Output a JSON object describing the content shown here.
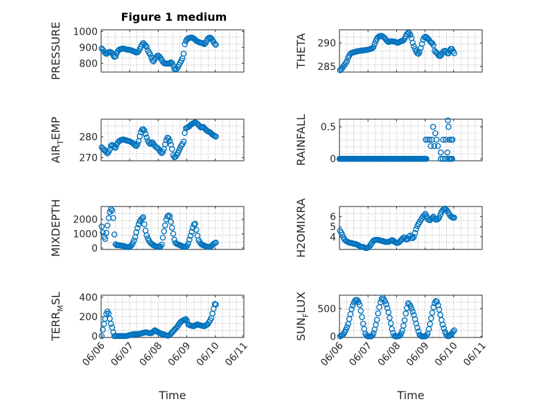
{
  "figure_title": "Figure 1 medium",
  "colors": {
    "marker": "#0072bd",
    "axis": "#262626",
    "grid": "#b0b0b0"
  },
  "chart_data": [
    {
      "type": "scatter",
      "ylabel": "PRESSURE",
      "ylabel_sub": "",
      "ylabel_tail": "",
      "yticks": [
        "800",
        "900",
        "1000"
      ],
      "ylim": [
        745,
        1010
      ],
      "xlim": [
        0,
        5
      ],
      "xticks": [],
      "xlabel": "",
      "grid": true,
      "marker": "open-circle",
      "y_at_day_steps": [
        893,
        880,
        865,
        858,
        870,
        872,
        868,
        850,
        835,
        862,
        882,
        888,
        891,
        893,
        890,
        886,
        885,
        884,
        880,
        876,
        872,
        866,
        872,
        892,
        913,
        928,
        915,
        905,
        872,
        860,
        830,
        808,
        828,
        846,
        848,
        840,
        822,
        805,
        798,
        800,
        796,
        802,
        808,
        785,
        757,
        765,
        780,
        800,
        820,
        840,
        925,
        948,
        956,
        960,
        962,
        958,
        950,
        940,
        935,
        930,
        928,
        925,
        918,
        938,
        958,
        962,
        955,
        940,
        922,
        913
      ]
    },
    {
      "type": "scatter",
      "ylabel": "THETA",
      "ylabel_sub": "",
      "ylabel_tail": "",
      "yticks": [
        "285",
        "290"
      ],
      "ylim": [
        283.8,
        292.8
      ],
      "xlim": [
        0,
        5
      ],
      "xticks": [],
      "xlabel": "",
      "grid": true,
      "marker": "open-circle",
      "y_at_day_steps": [
        284.2,
        284.5,
        285.0,
        285.5,
        286.0,
        287.0,
        287.6,
        287.9,
        288.0,
        288.1,
        288.2,
        288.3,
        288.3,
        288.4,
        288.4,
        288.5,
        288.5,
        288.6,
        288.7,
        288.8,
        289.0,
        290.0,
        290.8,
        291.3,
        291.5,
        291.5,
        291.3,
        291.0,
        290.5,
        290.2,
        290.3,
        290.4,
        290.3,
        290.3,
        290.1,
        290.0,
        290.3,
        290.4,
        290.5,
        291.0,
        291.8,
        292.2,
        292.0,
        291.0,
        289.6,
        288.8,
        288.0,
        287.6,
        288.2,
        289.5,
        290.8,
        291.4,
        291.2,
        290.9,
        290.4,
        290.0,
        289.8,
        288.1,
        288.0,
        287.5,
        287.1,
        287.5,
        288.2,
        288.4,
        288.0,
        287.6,
        288.5,
        288.9,
        288.2,
        287.6
      ]
    },
    {
      "type": "scatter",
      "ylabel": "AIR",
      "ylabel_sub": "T",
      "ylabel_tail": "EMP",
      "yticks": [
        "270",
        "280"
      ],
      "ylim": [
        268.5,
        288.5
      ],
      "xlim": [
        0,
        5
      ],
      "xticks": [],
      "xlabel": "",
      "grid": true,
      "marker": "open-circle",
      "y_at_day_steps": [
        275.0,
        274.0,
        273.0,
        272.0,
        273.5,
        276.5,
        275.5,
        274.5,
        277.0,
        278.0,
        278.5,
        278.8,
        278.5,
        278.2,
        278.0,
        277.5,
        277.0,
        276.0,
        275.5,
        278.0,
        282.0,
        284.0,
        283.0,
        280.0,
        277.5,
        276.5,
        277.5,
        276.0,
        275.0,
        274.5,
        273.0,
        272.0,
        274.0,
        278.0,
        280.0,
        278.0,
        275.0,
        270.0,
        270.5,
        272.0,
        274.0,
        276.0,
        277.0,
        284.0,
        284.5,
        285.0,
        286.0,
        286.5,
        287.0,
        286.5,
        285.5,
        284.5,
        285.0,
        284.0,
        283.0,
        282.5,
        282.0,
        281.0,
        280.5,
        280.0
      ]
    },
    {
      "type": "scatter",
      "ylabel": "RAINFALL",
      "ylabel_sub": "",
      "ylabel_tail": "",
      "yticks": [
        "0",
        "0.5"
      ],
      "ylim": [
        -0.03,
        0.62
      ],
      "xlim": [
        0,
        5
      ],
      "xticks": [],
      "xlabel": "",
      "grid": true,
      "marker": "open-circle",
      "points": [
        [
          3.02,
          0.3
        ],
        [
          3.08,
          0.3
        ],
        [
          3.15,
          0.3
        ],
        [
          3.2,
          0.2
        ],
        [
          3.24,
          0.3
        ],
        [
          3.28,
          0.5
        ],
        [
          3.32,
          0.2
        ],
        [
          3.36,
          0.4
        ],
        [
          3.4,
          0.3
        ],
        [
          3.45,
          0.2
        ],
        [
          3.55,
          0.1
        ],
        [
          3.63,
          0.3
        ],
        [
          3.72,
          0.3
        ],
        [
          3.78,
          0.1
        ],
        [
          3.8,
          0.6
        ],
        [
          3.82,
          0.5
        ],
        [
          3.85,
          0.3
        ],
        [
          3.92,
          0.3
        ],
        [
          3.96,
          0.3
        ],
        [
          3.86,
          0.0
        ],
        [
          3.9,
          0.0
        ],
        [
          3.94,
          0.0
        ]
      ],
      "zero_run_end_day": 3.05,
      "zero_extra_days": [
        3.55,
        3.62,
        3.7,
        3.78,
        3.84,
        3.9,
        3.95
      ]
    },
    {
      "type": "scatter",
      "ylabel": "MIXDEPTH",
      "ylabel_sub": "",
      "ylabel_tail": "",
      "yticks": [
        "0",
        "1000",
        "2000"
      ],
      "ylim": [
        -100,
        2900
      ],
      "xlim": [
        0,
        5
      ],
      "xticks": [],
      "xlabel": "",
      "grid": true,
      "marker": "open-circle",
      "y_at_day_steps": [
        1500,
        900,
        600,
        1200,
        2000,
        2600,
        2800,
        2050,
        300,
        200,
        200,
        180,
        160,
        160,
        100,
        80,
        60,
        100,
        200,
        400,
        700,
        1200,
        1600,
        1900,
        2050,
        2150,
        1400,
        900,
        600,
        400,
        300,
        200,
        150,
        100,
        80,
        60,
        200,
        900,
        1500,
        2100,
        2300,
        2200,
        1600,
        1000,
        400,
        300,
        250,
        200,
        150,
        100,
        60,
        100,
        300,
        700,
        1100,
        1500,
        1800,
        1200,
        600,
        400,
        250,
        200,
        150,
        100,
        80,
        60,
        150,
        250,
        350,
        400
      ]
    },
    {
      "type": "scatter",
      "ylabel": "H2OMIXRA",
      "ylabel_sub": "",
      "ylabel_tail": "",
      "yticks": [
        "4",
        "5",
        "6"
      ],
      "ylim": [
        2.75,
        7.0
      ],
      "xlim": [
        0,
        5
      ],
      "xticks": [],
      "xlabel": "",
      "grid": true,
      "marker": "open-circle",
      "y_at_day_steps": [
        4.6,
        4.3,
        3.8,
        3.6,
        3.5,
        3.4,
        3.4,
        3.3,
        3.3,
        3.2,
        3.1,
        3.0,
        3.0,
        2.9,
        2.9,
        3.0,
        3.3,
        3.6,
        3.7,
        3.7,
        3.7,
        3.6,
        3.6,
        3.5,
        3.5,
        3.5,
        3.6,
        3.7,
        3.5,
        3.4,
        3.4,
        3.6,
        3.8,
        4.0,
        3.7,
        3.8,
        4.2,
        3.8,
        4.0,
        4.7,
        5.2,
        5.5,
        5.8,
        6.1,
        6.3,
        5.8,
        5.6,
        5.8,
        6.0,
        5.7,
        5.7,
        5.9,
        6.4,
        6.7,
        6.8,
        6.6,
        6.3,
        6.0,
        5.9,
        5.9
      ]
    },
    {
      "type": "scatter",
      "ylabel": "TERR",
      "ylabel_sub": "M",
      "ylabel_tail": "SL",
      "yticks": [
        "0",
        "200",
        "400"
      ],
      "ylim": [
        -15,
        420
      ],
      "xlim": [
        0,
        5
      ],
      "xticks": [
        "06/06",
        "06/07",
        "06/08",
        "06/09",
        "06/10",
        "06/11"
      ],
      "xlabel": "Time",
      "grid": true,
      "marker": "open-circle",
      "y_at_day_steps": [
        0,
        100,
        180,
        260,
        230,
        140,
        80,
        0,
        0,
        0,
        0,
        0,
        0,
        0,
        0,
        5,
        10,
        15,
        20,
        20,
        20,
        20,
        25,
        30,
        35,
        40,
        35,
        30,
        30,
        40,
        60,
        50,
        40,
        30,
        20,
        20,
        10,
        5,
        5,
        20,
        40,
        60,
        80,
        100,
        130,
        150,
        160,
        170,
        175,
        120,
        110,
        105,
        100,
        110,
        120,
        115,
        110,
        105,
        100,
        110,
        120,
        150,
        180,
        250,
        330,
        320
      ]
    },
    {
      "type": "scatter",
      "ylabel": "SUN",
      "ylabel_sub": "F",
      "ylabel_tail": "LUX",
      "yticks": [
        "0",
        "500"
      ],
      "ylim": [
        -20,
        740
      ],
      "xlim": [
        0,
        5
      ],
      "xticks": [
        "06/06",
        "06/07",
        "06/08",
        "06/09",
        "06/10",
        "06/11"
      ],
      "xlabel": "Time",
      "grid": true,
      "marker": "open-circle",
      "y_at_day_steps": [
        0,
        20,
        50,
        120,
        200,
        350,
        500,
        600,
        660,
        650,
        580,
        400,
        200,
        50,
        0,
        0,
        0,
        30,
        150,
        300,
        500,
        650,
        700,
        640,
        550,
        420,
        250,
        80,
        0,
        0,
        0,
        20,
        100,
        250,
        450,
        600,
        560,
        480,
        380,
        250,
        120,
        20,
        0,
        0,
        0,
        40,
        180,
        350,
        520,
        640,
        620,
        480,
        320,
        180,
        80,
        10,
        0,
        30,
        80,
        120
      ]
    }
  ]
}
